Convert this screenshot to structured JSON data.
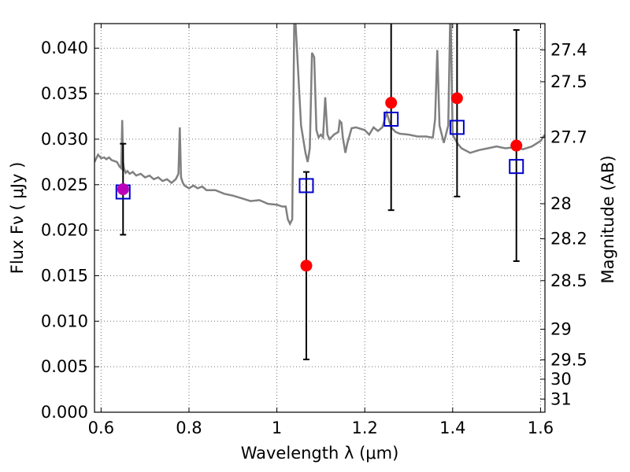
{
  "chart_data": {
    "type": "scatter",
    "title": "",
    "xlabel": "Wavelength  λ (μm)",
    "ylabel": "Flux  Fν  ( μJy )",
    "y2label": "Magnitude (AB)",
    "xlim": [
      0.585,
      1.61
    ],
    "ylim": [
      0.0,
      0.0427
    ],
    "x_ticks": [
      0.6,
      0.8,
      1.0,
      1.2,
      1.4,
      1.6
    ],
    "x_tick_labels": [
      "0.6",
      "0.8",
      "1",
      "1.2",
      "1.4",
      "1.6"
    ],
    "y_ticks": [
      0.0,
      0.005,
      0.01,
      0.015,
      0.02,
      0.025,
      0.03,
      0.035,
      0.04
    ],
    "y_tick_labels": [
      "0.000",
      "0.005",
      "0.010",
      "0.015",
      "0.020",
      "0.025",
      "0.030",
      "0.035",
      "0.040"
    ],
    "mag_ticks": [
      27.4,
      27.5,
      27.7,
      28,
      28.2,
      28.5,
      29,
      29.5,
      30,
      31
    ],
    "mag_tick_labels": [
      "27.4",
      "27.5",
      "27.7",
      "28",
      "28.2",
      "28.5",
      "29",
      "29.5",
      "30",
      "31"
    ],
    "grid": true,
    "colors": {
      "spectrum": "#808080",
      "observed": "#ff0000",
      "overlap": "#bb00bb",
      "model": "#0000cc",
      "errorbar": "#000000"
    },
    "series": [
      {
        "name": "model spectrum",
        "kind": "line",
        "x": [
          0.585,
          0.593,
          0.6,
          0.607,
          0.612,
          0.618,
          0.624,
          0.63,
          0.636,
          0.642,
          0.646,
          0.648,
          0.65,
          0.652,
          0.656,
          0.66,
          0.665,
          0.672,
          0.68,
          0.69,
          0.7,
          0.71,
          0.72,
          0.73,
          0.74,
          0.75,
          0.76,
          0.77,
          0.776,
          0.779,
          0.782,
          0.786,
          0.79,
          0.8,
          0.81,
          0.82,
          0.83,
          0.84,
          0.86,
          0.88,
          0.9,
          0.92,
          0.94,
          0.96,
          0.98,
          1.0,
          1.012,
          1.02,
          1.025,
          1.03,
          1.035,
          1.04,
          1.055,
          1.065,
          1.07,
          1.075,
          1.08,
          1.085,
          1.09,
          1.095,
          1.1,
          1.105,
          1.11,
          1.115,
          1.12,
          1.13,
          1.14,
          1.143,
          1.147,
          1.15,
          1.156,
          1.16,
          1.17,
          1.18,
          1.2,
          1.21,
          1.22,
          1.23,
          1.24,
          1.25,
          1.26,
          1.27,
          1.28,
          1.3,
          1.32,
          1.34,
          1.35,
          1.355,
          1.36,
          1.365,
          1.37,
          1.38,
          1.39,
          1.395,
          1.4,
          1.41,
          1.42,
          1.44,
          1.46,
          1.48,
          1.5,
          1.52,
          1.54,
          1.56,
          1.58,
          1.6,
          1.61
        ],
        "y": [
          0.0275,
          0.0283,
          0.0279,
          0.028,
          0.0278,
          0.028,
          0.0277,
          0.0276,
          0.0275,
          0.027,
          0.0268,
          0.0321,
          0.0275,
          0.0268,
          0.0263,
          0.0265,
          0.0262,
          0.0264,
          0.026,
          0.0262,
          0.0258,
          0.026,
          0.0256,
          0.0258,
          0.0254,
          0.0256,
          0.0252,
          0.0256,
          0.0262,
          0.0313,
          0.0258,
          0.0252,
          0.0249,
          0.0246,
          0.0249,
          0.0246,
          0.0248,
          0.0244,
          0.0244,
          0.024,
          0.0238,
          0.0235,
          0.0232,
          0.0233,
          0.0229,
          0.0228,
          0.0226,
          0.0226,
          0.0212,
          0.0207,
          0.0212,
          0.045,
          0.0315,
          0.0285,
          0.0275,
          0.029,
          0.0395,
          0.039,
          0.031,
          0.0302,
          0.0305,
          0.0302,
          0.0346,
          0.0305,
          0.03,
          0.0305,
          0.0308,
          0.032,
          0.0318,
          0.0302,
          0.0285,
          0.0295,
          0.0312,
          0.0313,
          0.031,
          0.0305,
          0.0313,
          0.0309,
          0.0313,
          0.0329,
          0.0313,
          0.0308,
          0.0306,
          0.0305,
          0.0303,
          0.0303,
          0.0302,
          0.0302,
          0.0322,
          0.0398,
          0.0315,
          0.0296,
          0.0315,
          0.045,
          0.0305,
          0.0296,
          0.029,
          0.0285,
          0.0288,
          0.029,
          0.0292,
          0.029,
          0.0291,
          0.0289,
          0.0292,
          0.0298,
          0.0305
        ]
      },
      {
        "name": "observed photometry",
        "kind": "points",
        "x": [
          0.65,
          1.067,
          1.26,
          1.41,
          1.545
        ],
        "y": [
          0.0245,
          0.0161,
          0.034,
          0.0345,
          0.0293
        ],
        "yerr": [
          0.005,
          0.0103,
          0.0118,
          0.0108,
          0.0127
        ]
      },
      {
        "name": "model photometry",
        "kind": "squares",
        "x": [
          0.65,
          1.067,
          1.26,
          1.41,
          1.545
        ],
        "y": [
          0.0242,
          0.0249,
          0.0322,
          0.0313,
          0.027
        ]
      }
    ]
  }
}
